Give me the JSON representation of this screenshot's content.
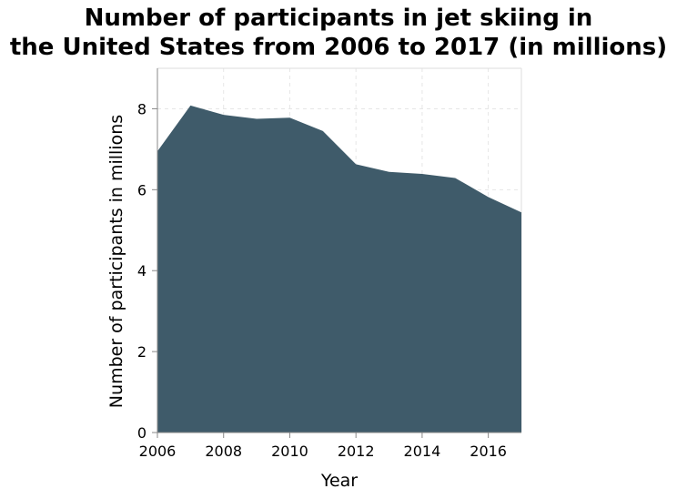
{
  "chart_data": {
    "type": "area",
    "title_lines": [
      "Number of participants in jet skiing in",
      "the United States from 2006 to 2017 (in millions)"
    ],
    "xlabel": "Year",
    "ylabel": "Number of participants in millions",
    "x": [
      2006,
      2007,
      2008,
      2009,
      2010,
      2011,
      2012,
      2013,
      2014,
      2015,
      2016,
      2017
    ],
    "y": [
      6.95,
      8.08,
      7.85,
      7.75,
      7.78,
      7.45,
      6.63,
      6.44,
      6.39,
      6.29,
      5.82,
      5.44
    ],
    "xlim": [
      2006,
      2017
    ],
    "ylim": [
      0,
      9
    ],
    "x_ticks": [
      2006,
      2008,
      2010,
      2012,
      2014,
      2016
    ],
    "x_tick_labels": [
      "2006",
      "2008",
      "2010",
      "2012",
      "2014",
      "2016"
    ],
    "y_ticks": [
      0,
      2,
      4,
      6,
      8
    ],
    "y_tick_labels": [
      "0",
      "2",
      "4",
      "6",
      "8"
    ],
    "grid": true,
    "fill_color": "#3f5b6a",
    "grid_color": "#e6e6e6"
  }
}
